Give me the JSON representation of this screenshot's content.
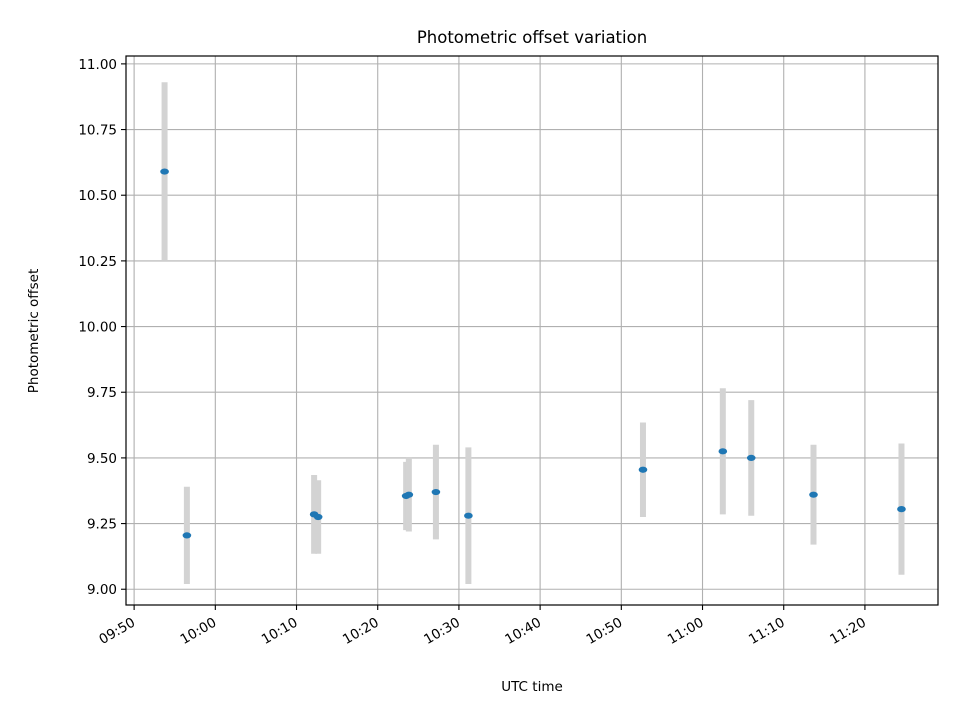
{
  "chart_data": {
    "type": "scatter",
    "title": "Photometric offset variation",
    "xlabel": "UTC time",
    "ylabel": "Photometric offset",
    "x_unit": "time of day (HH:MM)",
    "xlim": [
      "09:49",
      "11:29"
    ],
    "ylim": [
      8.94,
      11.03
    ],
    "x_ticks": [
      "09:50",
      "10:00",
      "10:10",
      "10:20",
      "10:30",
      "10:40",
      "10:50",
      "11:00",
      "11:10",
      "11:20"
    ],
    "y_ticks": [
      9.0,
      9.25,
      9.5,
      9.75,
      10.0,
      10.25,
      10.5,
      10.75,
      11.0
    ],
    "y_tick_labels": [
      "9.00",
      "9.25",
      "9.50",
      "9.75",
      "10.00",
      "10.25",
      "10.50",
      "10.75",
      "11.00"
    ],
    "grid": true,
    "marker_color": "#1f77b4",
    "errorbar_color": "#d3d3d3",
    "points": [
      {
        "x": "09:53:45",
        "y": 10.59,
        "err": 0.34
      },
      {
        "x": "09:56:30",
        "y": 9.205,
        "err": 0.185
      },
      {
        "x": "10:12:10",
        "y": 9.285,
        "err": 0.15
      },
      {
        "x": "10:12:40",
        "y": 9.275,
        "err": 0.14
      },
      {
        "x": "10:23:30",
        "y": 9.355,
        "err": 0.13
      },
      {
        "x": "10:23:50",
        "y": 9.36,
        "err": 0.14
      },
      {
        "x": "10:27:10",
        "y": 9.37,
        "err": 0.18
      },
      {
        "x": "10:31:10",
        "y": 9.28,
        "err": 0.26
      },
      {
        "x": "10:52:40",
        "y": 9.455,
        "err": 0.18
      },
      {
        "x": "11:02:30",
        "y": 9.525,
        "err": 0.24
      },
      {
        "x": "11:06:00",
        "y": 9.5,
        "err": 0.22
      },
      {
        "x": "11:13:40",
        "y": 9.36,
        "err": 0.19
      },
      {
        "x": "11:24:30",
        "y": 9.305,
        "err": 0.25
      }
    ]
  }
}
